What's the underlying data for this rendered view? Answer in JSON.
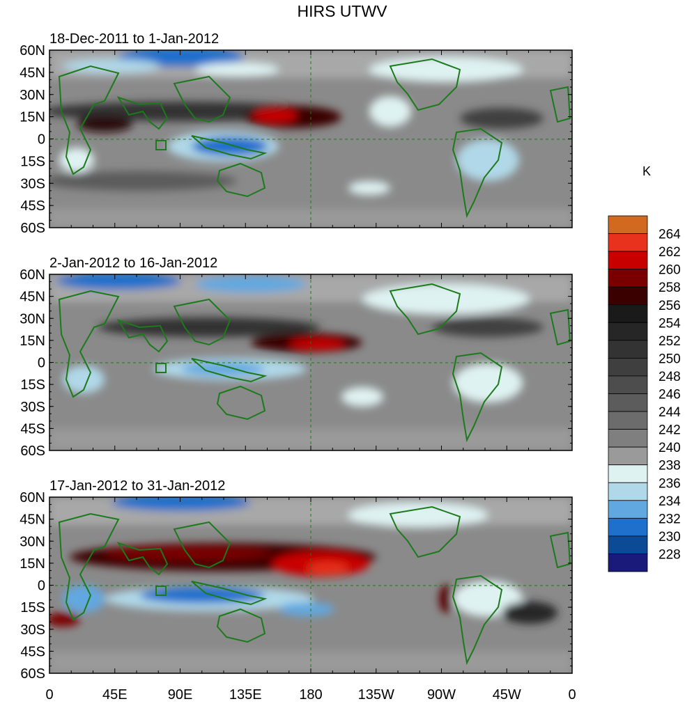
{
  "title": "HIRS UTWV",
  "panels": [
    {
      "period": "18-Dec-2011 to 1-Jan-2012"
    },
    {
      "period": "2-Jan-2012 to 16-Jan-2012"
    },
    {
      "period": "17-Jan-2012 to 31-Jan-2012"
    }
  ],
  "lat_labels": [
    "60N",
    "45N",
    "30N",
    "15N",
    "0",
    "15S",
    "30S",
    "45S",
    "60S"
  ],
  "lon_labels": [
    "0",
    "45E",
    "90E",
    "135E",
    "180",
    "135W",
    "90W",
    "45W",
    "0"
  ],
  "colorbar": {
    "unit": "K",
    "labels": [
      "264",
      "262",
      "260",
      "258",
      "256",
      "254",
      "252",
      "250",
      "248",
      "246",
      "244",
      "242",
      "240",
      "238",
      "236",
      "234",
      "232",
      "230",
      "228"
    ],
    "colors": [
      "#d2691e",
      "#e8321e",
      "#c80000",
      "#7a0000",
      "#3a0000",
      "#1a1a1a",
      "#262626",
      "#333333",
      "#3f3f3f",
      "#4d4d4d",
      "#5c5c5c",
      "#6c6c6c",
      "#7f7f7f",
      "#9a9a9a",
      "#dff2f2",
      "#b0d8e8",
      "#62a8e0",
      "#1f6fcc",
      "#0d4a96",
      "#1a1a7a"
    ]
  },
  "colors": {
    "coastline": "#1b7a1b",
    "background_field": "#8a8a8a"
  }
}
